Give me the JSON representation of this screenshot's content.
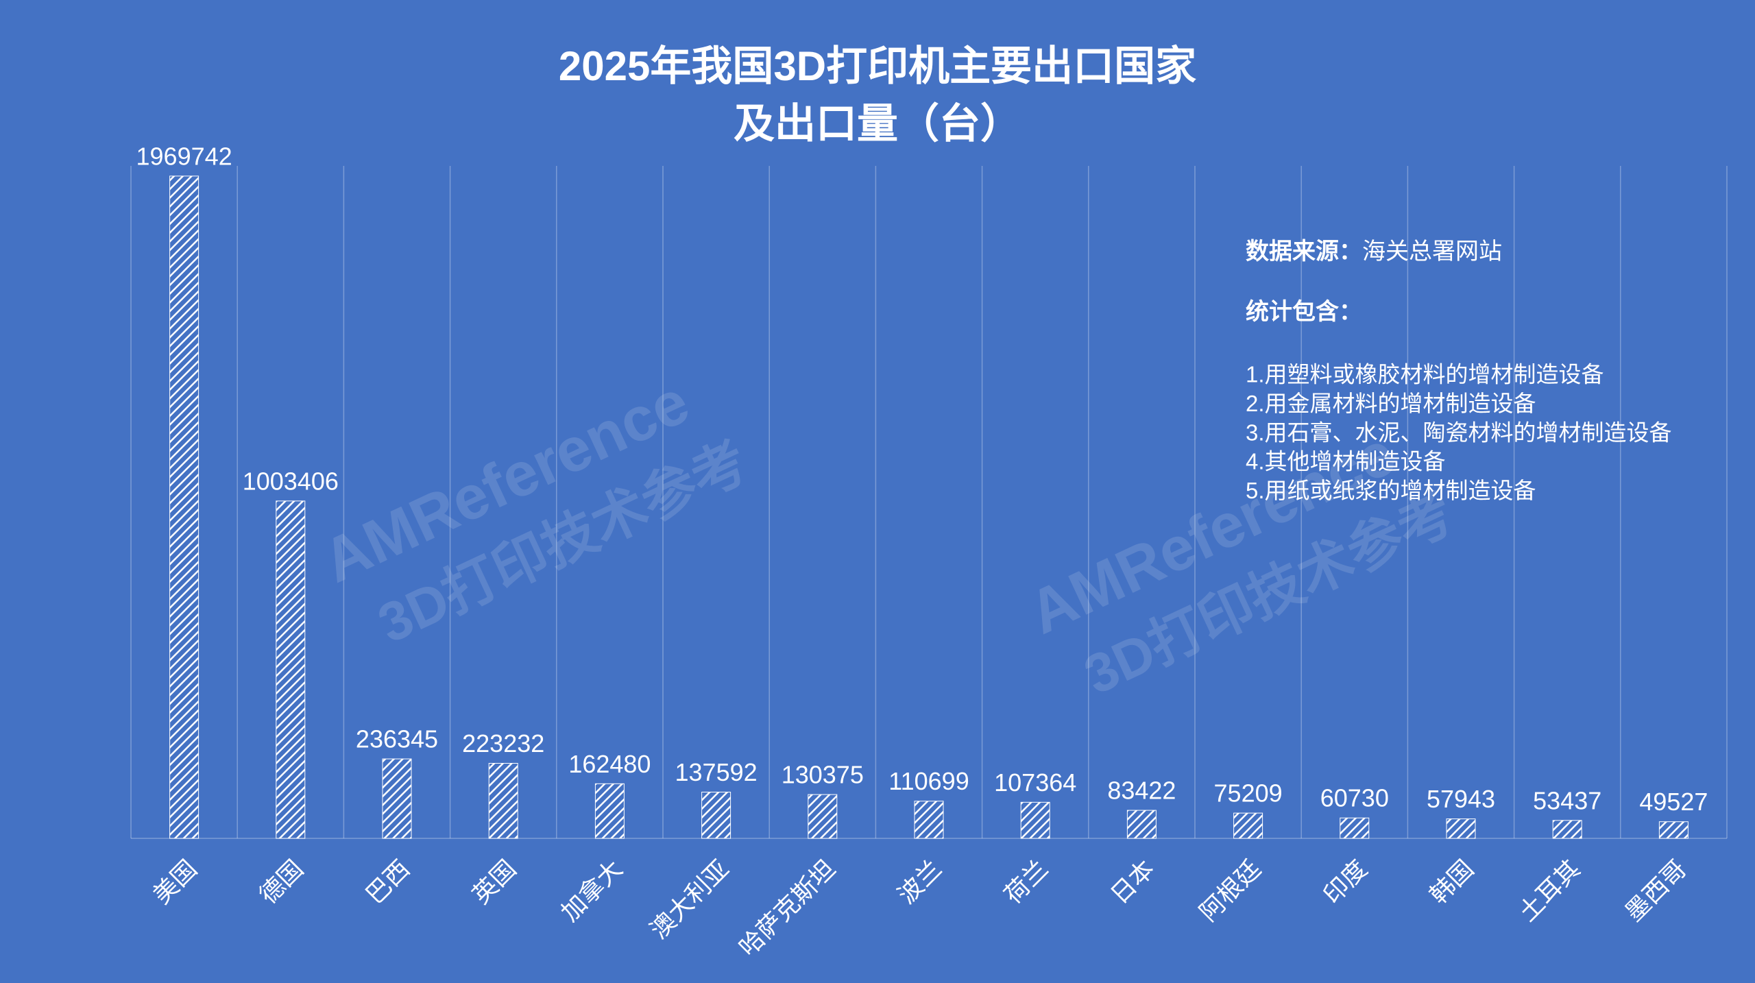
{
  "chart_data": {
    "type": "bar",
    "title": [
      "2025年我国3D打印机主要出口国家",
      "及出口量（台）"
    ],
    "categories": [
      "美国",
      "德国",
      "巴西",
      "英国",
      "加拿大",
      "澳大利亚",
      "哈萨克斯坦",
      "波兰",
      "荷兰",
      "日本",
      "阿根廷",
      "印度",
      "韩国",
      "土耳其",
      "墨西哥"
    ],
    "values": [
      1969742,
      1003406,
      236345,
      223232,
      162480,
      137592,
      130375,
      110699,
      107364,
      83422,
      75209,
      60730,
      57943,
      53437,
      49527
    ],
    "color": "#ffffff",
    "ylim": [
      0,
      2000000
    ],
    "grid": true,
    "source_label": "数据来源：",
    "source": "海关总署网站",
    "notes_label": "统计包含：",
    "notes": [
      "1.用塑料或橡胶材料的增材制造设备",
      "2.用金属材料的增材制造设备",
      "3.用石膏、水泥、陶瓷材料的增材制造设备",
      "4.其他增材制造设备",
      "5.用纸或纸浆的增材制造设备"
    ],
    "watermark": [
      "AMReference",
      "3D打印技术参考"
    ]
  }
}
